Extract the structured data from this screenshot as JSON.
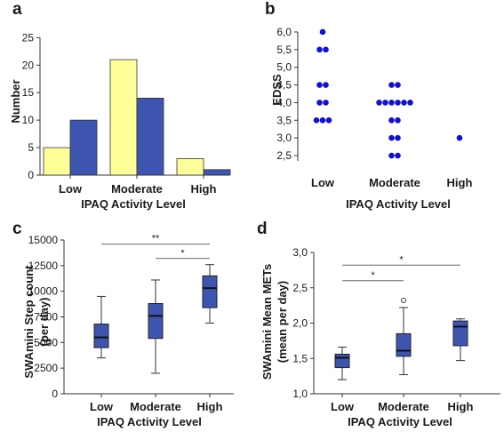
{
  "chart_data": [
    {
      "panel": "a",
      "type": "bar",
      "xlabel": "IPAQ Activity Level",
      "ylabel": "Number",
      "categories": [
        "Low",
        "Moderate",
        "High"
      ],
      "series": [
        {
          "values": [
            5,
            21,
            3
          ],
          "color": "#ffff99"
        },
        {
          "values": [
            10,
            14,
            1
          ],
          "color": "#3d55b0"
        }
      ],
      "ylim": [
        0,
        27
      ],
      "yticks": [
        0,
        5,
        10,
        15,
        20,
        25
      ]
    },
    {
      "panel": "b",
      "type": "scatter",
      "xlabel": "IPAQ Activity Level",
      "ylabel": "EDSS",
      "categories": [
        "Low",
        "Moderate",
        "High"
      ],
      "points": [
        {
          "cat": "Low",
          "values": [
            6.0,
            5.5,
            5.5,
            4.5,
            4.5,
            4.0,
            4.0,
            3.5,
            3.5,
            3.5
          ]
        },
        {
          "cat": "Moderate",
          "values": [
            4.5,
            4.5,
            4.0,
            4.0,
            4.0,
            4.0,
            4.0,
            4.0,
            3.5,
            3.5,
            3.0,
            3.0,
            2.5,
            2.5
          ]
        },
        {
          "cat": "High",
          "values": [
            3.0
          ]
        }
      ],
      "color": "#1010d8",
      "ylim": [
        2.35,
        6.15
      ],
      "yticks": [
        "2,5",
        "3,0",
        "3,5",
        "4,0",
        "4,5",
        "5,0",
        "5,5",
        "6,0"
      ],
      "ytick_values": [
        2.5,
        3.0,
        3.5,
        4.0,
        4.5,
        5.0,
        5.5,
        6.0
      ]
    },
    {
      "panel": "c",
      "type": "box",
      "xlabel": "IPAQ Activity Level",
      "ylabel": "SWAmini Step count",
      "ylabel2": "(per day)",
      "categories": [
        "Low",
        "Moderate",
        "High"
      ],
      "boxes": [
        {
          "min": 3500,
          "q1": 4500,
          "median": 5500,
          "q3": 6800,
          "max": 9500
        },
        {
          "min": 2000,
          "q1": 5400,
          "median": 7600,
          "q3": 8800,
          "max": 11100
        },
        {
          "min": 6900,
          "q1": 8400,
          "median": 10300,
          "q3": 11500,
          "max": 12600
        }
      ],
      "color": "#3d55b0",
      "ylim": [
        0,
        15000
      ],
      "yticks": [
        "0",
        "2500",
        "5000",
        "7500",
        "10000",
        "12500",
        "15000"
      ],
      "ytick_values": [
        0,
        2500,
        5000,
        7500,
        10000,
        12500,
        15000
      ],
      "significance": [
        {
          "from": "Low",
          "to": "High",
          "y": 14600,
          "label": "**"
        },
        {
          "from": "Moderate",
          "to": "High",
          "y": 13200,
          "label": "*"
        }
      ]
    },
    {
      "panel": "d",
      "type": "box",
      "xlabel": "IPAQ Activity Level",
      "ylabel": "SWAmini Mean METs",
      "ylabel2": "(mean per day)",
      "categories": [
        "Low",
        "Moderate",
        "High"
      ],
      "boxes": [
        {
          "min": 1.2,
          "q1": 1.37,
          "median": 1.51,
          "q3": 1.56,
          "max": 1.66
        },
        {
          "min": 1.27,
          "q1": 1.53,
          "median": 1.61,
          "q3": 1.85,
          "max": 2.22,
          "outliers": [
            2.32
          ]
        },
        {
          "min": 1.47,
          "q1": 1.68,
          "median": 1.95,
          "q3": 2.03,
          "max": 2.06
        }
      ],
      "color": "#3d55b0",
      "ylim": [
        1.0,
        3.0
      ],
      "yticks": [
        "1,0",
        "1,5",
        "2,0",
        "2,5",
        "3,0"
      ],
      "ytick_values": [
        1.0,
        1.5,
        2.0,
        2.5,
        3.0
      ],
      "significance": [
        {
          "from": "Low",
          "to": "Moderate",
          "y": 2.6,
          "label": "*"
        },
        {
          "from": "Low",
          "to": "High",
          "y": 2.82,
          "label": "*"
        }
      ]
    }
  ]
}
